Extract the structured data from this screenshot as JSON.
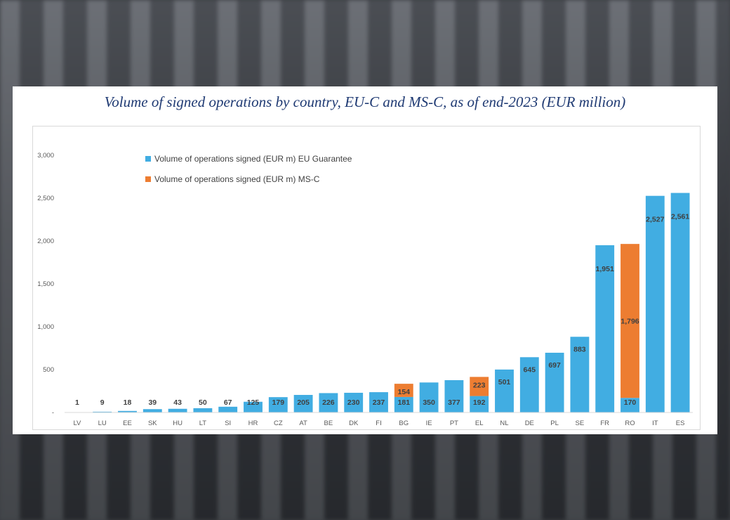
{
  "chart_data": {
    "type": "bar",
    "stacked": true,
    "title": "Volume of signed operations by country, EU-C and MS-C, as of end-2023 (EUR  million)",
    "xlabel": "",
    "ylabel": "",
    "ylim": [
      0,
      3000
    ],
    "yticks": [
      "-",
      "500",
      "1,000",
      "1,500",
      "2,000",
      "2,500",
      "3,000"
    ],
    "ytick_values": [
      0,
      500,
      1000,
      1500,
      2000,
      2500,
      3000
    ],
    "grid": false,
    "legend_position": "top-left",
    "categories": [
      "LV",
      "LU",
      "EE",
      "SK",
      "HU",
      "LT",
      "SI",
      "HR",
      "CZ",
      "AT",
      "BE",
      "DK",
      "FI",
      "BG",
      "IE",
      "PT",
      "EL",
      "NL",
      "DE",
      "PL",
      "SE",
      "FR",
      "RO",
      "IT",
      "ES"
    ],
    "series": [
      {
        "name": "Volume of operations signed (EUR m) EU Guarantee",
        "color": "#41ade2",
        "values": [
          1,
          9,
          18,
          39,
          43,
          50,
          67,
          125,
          179,
          205,
          226,
          230,
          237,
          181,
          350,
          377,
          192,
          501,
          645,
          697,
          883,
          1951,
          170,
          2527,
          2561
        ],
        "labels": [
          "1",
          "9",
          "18",
          "39",
          "43",
          "50",
          "67",
          "125",
          "179",
          "205",
          "226",
          "230",
          "237",
          "181",
          "350",
          "377",
          "192",
          "501",
          "645",
          "697",
          "883",
          "1,951",
          "170",
          "2,527",
          "2,561"
        ]
      },
      {
        "name": "Volume of operations signed (EUR m) MS-C",
        "color": "#ed7d31",
        "values": [
          0,
          0,
          0,
          0,
          0,
          0,
          0,
          0,
          0,
          0,
          0,
          0,
          0,
          154,
          0,
          0,
          223,
          0,
          0,
          0,
          0,
          0,
          1796,
          0,
          0
        ],
        "labels": [
          "",
          "",
          "",
          "",
          "",
          "",
          "",
          "",
          "",
          "",
          "",
          "",
          "",
          "154",
          "",
          "",
          "223",
          "",
          "",
          "",
          "",
          "",
          "1,796",
          "",
          ""
        ]
      }
    ]
  }
}
